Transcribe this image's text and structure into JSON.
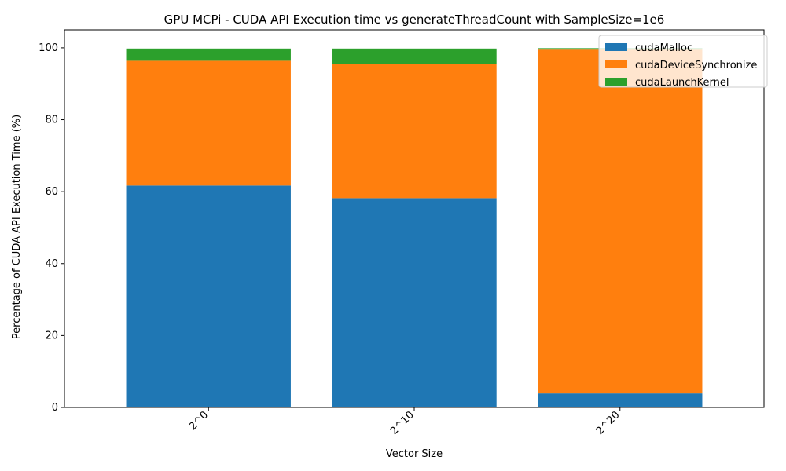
{
  "chart_data": {
    "type": "bar",
    "stacked": true,
    "title": "GPU MCPi - CUDA API Execution time vs generateThreadCount with SampleSize=1e6",
    "xlabel": "Vector Size",
    "ylabel": "Percentage of CUDA API Execution Time (%)",
    "categories": [
      "2^0",
      "2^10",
      "2^20"
    ],
    "ylim": [
      0,
      105
    ],
    "yticks": [
      0,
      20,
      40,
      60,
      80,
      100
    ],
    "grid": false,
    "legend_position": "upper right",
    "series": [
      {
        "name": "cudaMalloc",
        "color": "#1f77b4",
        "values": [
          61.7,
          58.2,
          3.9
        ]
      },
      {
        "name": "cudaDeviceSynchronize",
        "color": "#ff7f0e",
        "values": [
          34.7,
          37.3,
          95.6
        ]
      },
      {
        "name": "cudaLaunchKernel",
        "color": "#2ca02c",
        "values": [
          3.4,
          4.3,
          0.4
        ]
      }
    ]
  }
}
